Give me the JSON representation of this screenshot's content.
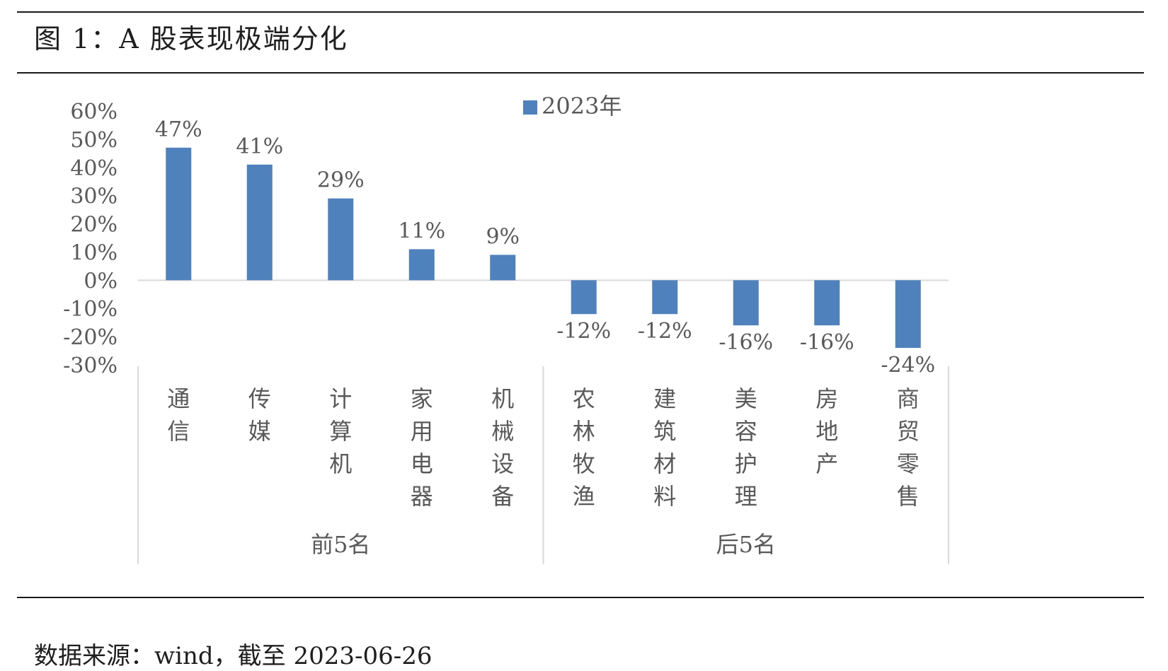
{
  "figure": {
    "title": "图 1：A 股表现极端分化",
    "source": "数据来源：wind，截至 2023-06-26"
  },
  "colors": {
    "bar": "#4f81bd",
    "axis": "#d9d9d9",
    "text": "#595959"
  },
  "chart_data": {
    "type": "bar",
    "title": "",
    "xlabel": "",
    "ylabel": "",
    "ylim": [
      -30,
      60
    ],
    "yticks": [
      "60%",
      "50%",
      "40%",
      "30%",
      "20%",
      "10%",
      "0%",
      "-10%",
      "-20%",
      "-30%"
    ],
    "ytick_values": [
      60,
      50,
      40,
      30,
      20,
      10,
      0,
      -10,
      -20,
      -30
    ],
    "legend": {
      "position": "top",
      "label": "2023年"
    },
    "categories": [
      "通信",
      "传媒",
      "计算机",
      "家用电器",
      "机械设备",
      "农林牧渔",
      "建筑材料",
      "美容护理",
      "房地产",
      "商贸零售"
    ],
    "groups": [
      {
        "label": "前5名",
        "count": 5
      },
      {
        "label": "后5名",
        "count": 5
      }
    ],
    "series": [
      {
        "name": "2023年",
        "values": [
          47,
          41,
          29,
          11,
          9,
          -12,
          -12,
          -16,
          -16,
          -24
        ],
        "labels": [
          "47%",
          "41%",
          "29%",
          "11%",
          "9%",
          "-12%",
          "-12%",
          "-16%",
          "-16%",
          "-24%"
        ]
      }
    ],
    "grid": false
  }
}
